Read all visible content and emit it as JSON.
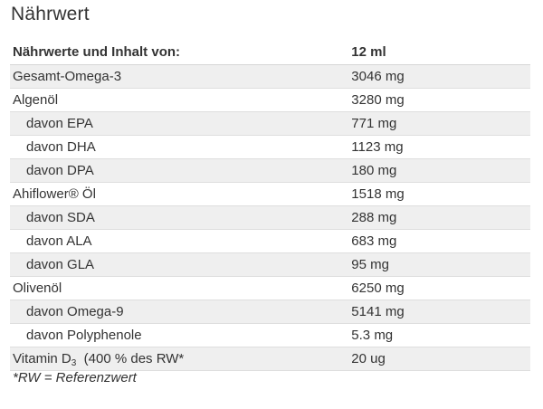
{
  "title": "Nährwert",
  "table": {
    "header": {
      "name": "Nährwerte und Inhalt von:",
      "value": "12 ml"
    },
    "rows": [
      {
        "name": "Gesamt-Omega-3",
        "value": "3046 mg",
        "indent": false
      },
      {
        "name": "Algenöl",
        "value": "3280 mg",
        "indent": false
      },
      {
        "name": "davon EPA",
        "value": "771 mg",
        "indent": true
      },
      {
        "name": "davon DHA",
        "value": "1123 mg",
        "indent": true
      },
      {
        "name": "davon DPA",
        "value": "180 mg",
        "indent": true
      },
      {
        "name": "Ahiflower® Öl",
        "value": "1518 mg",
        "indent": false
      },
      {
        "name": "davon SDA",
        "value": "288 mg",
        "indent": true
      },
      {
        "name": "davon ALA",
        "value": "683 mg",
        "indent": true
      },
      {
        "name": "davon GLA",
        "value": "95 mg",
        "indent": true
      },
      {
        "name": "Olivenöl",
        "value": "6250 mg",
        "indent": false
      },
      {
        "name": "davon Omega-9",
        "value": "5141 mg",
        "indent": true
      },
      {
        "name": "davon Polyphenole",
        "value": "5.3 mg",
        "indent": true
      },
      {
        "name_prefix": "Vitamin D",
        "name_sub": "3",
        "name_suffix": "(400 % des RW*",
        "value": "20 ug",
        "indent": false
      }
    ]
  },
  "footnote": "*RW = Referenzwert"
}
